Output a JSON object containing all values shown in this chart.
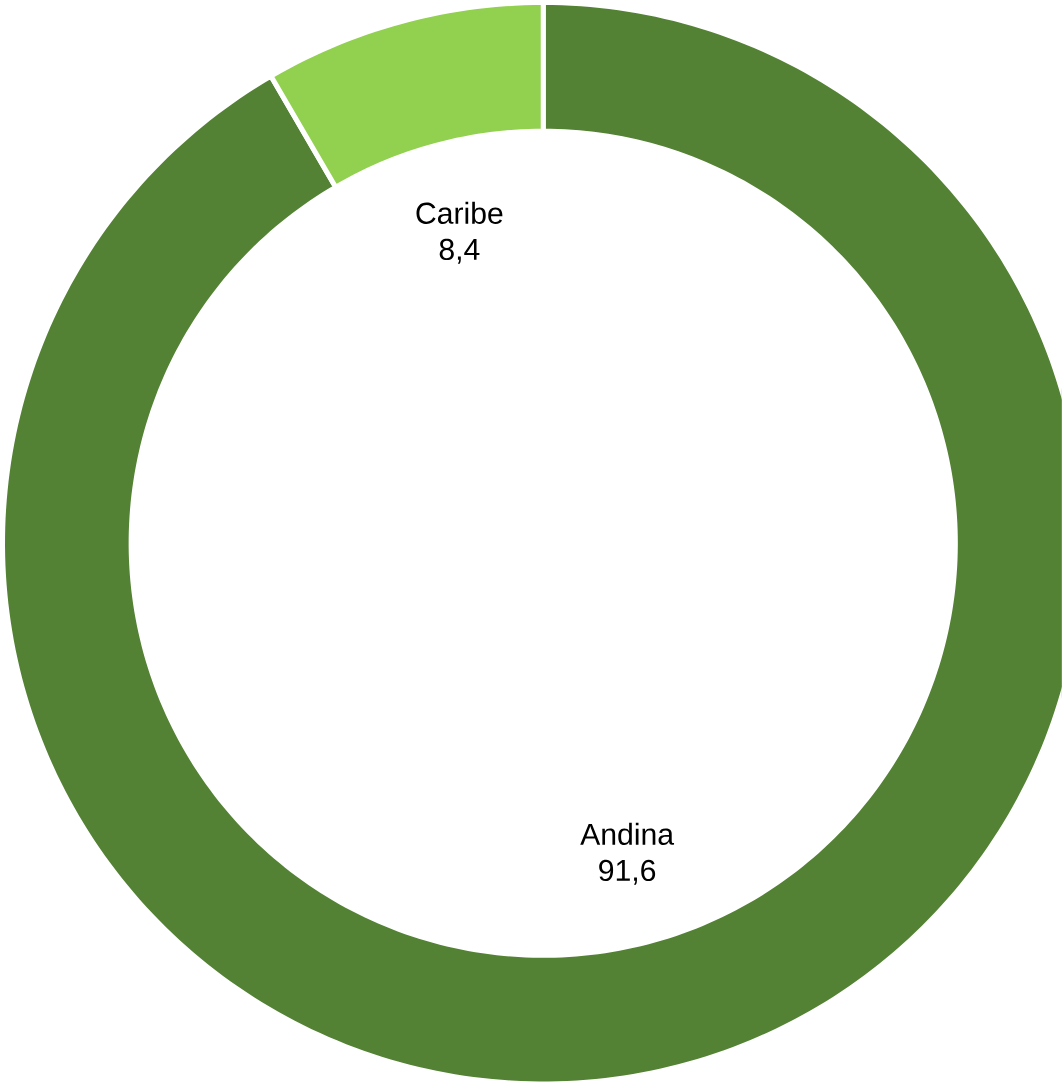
{
  "chart_data": {
    "type": "donut",
    "categories": [
      "Andina",
      "Caribe"
    ],
    "values": [
      91.6,
      8.4
    ],
    "colors": [
      "#548235",
      "#92d050"
    ],
    "value_labels": [
      "91,6",
      "8,4"
    ]
  }
}
